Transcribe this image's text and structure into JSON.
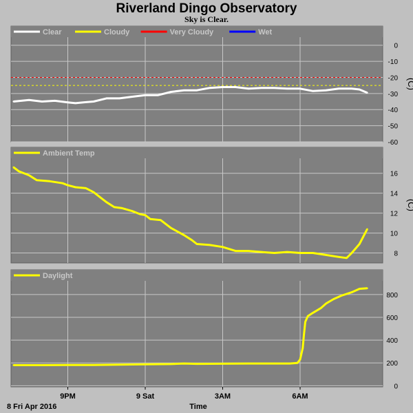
{
  "title": "Riverland Dingo Observatory",
  "subtitle": "Sky is Clear.",
  "bottom_left_label": "8 Fri Apr 2016",
  "x_axis_label": "Time",
  "x_ticks": [
    {
      "label": "9PM",
      "hour": 21
    },
    {
      "label": "9 Sat",
      "hour": 24
    },
    {
      "label": "3AM",
      "hour": 27
    },
    {
      "label": "6AM",
      "hour": 30
    }
  ],
  "x_range_hours": [
    18.8,
    33.2
  ],
  "colors": {
    "background": "#c0c0c0",
    "plot_area": "#808080",
    "grid": "#c8c8c8",
    "clear": "#ffffff",
    "cloudy": "#ffff00",
    "very_cloudy": "#ff0000",
    "wet": "#0000ff"
  },
  "chart_data": [
    {
      "type": "line",
      "name": "sky",
      "legend": [
        {
          "label": "Clear",
          "color": "#ffffff"
        },
        {
          "label": "Cloudy",
          "color": "#ffff00"
        },
        {
          "label": "Very Cloudy",
          "color": "#ff0000"
        },
        {
          "label": "Wet",
          "color": "#0000ff"
        }
      ],
      "unit": "(C)",
      "ylim": [
        -60,
        5
      ],
      "yticks": [
        0,
        -10,
        -20,
        -30,
        -40,
        -50,
        -60
      ],
      "thresholds": [
        {
          "value": -20,
          "color": "#ff0000"
        },
        {
          "value": -25,
          "color": "#ffff00"
        }
      ],
      "series": [
        {
          "name": "Clear",
          "color": "#ffffff",
          "x": [
            18.9,
            19.5,
            20.0,
            20.5,
            21.0,
            21.3,
            21.6,
            22.0,
            22.5,
            23.0,
            23.5,
            24.0,
            24.5,
            25.0,
            25.5,
            26.0,
            26.5,
            27.0,
            27.5,
            28.0,
            28.5,
            29.0,
            29.5,
            30.0,
            30.5,
            31.0,
            31.5,
            32.0,
            32.3,
            32.6
          ],
          "y": [
            -35,
            -34,
            -35,
            -34.5,
            -35.5,
            -36,
            -35.5,
            -35,
            -33,
            -33,
            -32,
            -31,
            -31,
            -29,
            -28,
            -28,
            -26.5,
            -26,
            -26,
            -27,
            -26.5,
            -26.5,
            -27,
            -27,
            -28.5,
            -28,
            -27,
            -27,
            -27.5,
            -29.5
          ]
        }
      ]
    },
    {
      "type": "line",
      "name": "ambient",
      "legend": [
        {
          "label": "Ambient Temp",
          "color": "#ffff00"
        }
      ],
      "unit": "(C)",
      "ylim": [
        7,
        17.5
      ],
      "yticks": [
        16,
        14,
        12,
        10,
        8
      ],
      "series": [
        {
          "name": "Ambient Temp",
          "color": "#ffff00",
          "x": [
            18.9,
            19.1,
            19.5,
            19.8,
            20.3,
            20.8,
            21.0,
            21.3,
            21.7,
            22.0,
            22.3,
            22.5,
            22.8,
            23.1,
            23.5,
            23.8,
            24.0,
            24.2,
            24.6,
            25.0,
            25.5,
            25.8,
            26.0,
            26.5,
            27.0,
            27.5,
            28.0,
            28.5,
            29.0,
            29.5,
            30.0,
            30.5,
            31.0,
            31.5,
            31.8,
            32.0,
            32.3,
            32.6
          ],
          "y": [
            16.6,
            16.2,
            15.8,
            15.3,
            15.2,
            15.0,
            14.8,
            14.6,
            14.5,
            14.1,
            13.5,
            13.1,
            12.6,
            12.5,
            12.2,
            11.9,
            11.8,
            11.4,
            11.3,
            10.5,
            9.8,
            9.3,
            8.9,
            8.8,
            8.6,
            8.2,
            8.2,
            8.1,
            8.0,
            8.1,
            8.0,
            8.0,
            7.8,
            7.6,
            7.5,
            8.0,
            8.9,
            10.4
          ]
        }
      ]
    },
    {
      "type": "line",
      "name": "daylight",
      "legend": [
        {
          "label": "Daylight",
          "color": "#ffff00"
        }
      ],
      "unit": "",
      "ylim": [
        -10,
        920
      ],
      "yticks": [
        800,
        600,
        400,
        200,
        0
      ],
      "series": [
        {
          "name": "Daylight",
          "color": "#ffff00",
          "x": [
            18.9,
            20.0,
            21.0,
            22.0,
            23.0,
            24.0,
            25.0,
            25.5,
            26.0,
            27.0,
            28.0,
            29.0,
            29.6,
            29.9,
            30.0,
            30.1,
            30.15,
            30.2,
            30.3,
            30.5,
            30.8,
            31.0,
            31.3,
            31.6,
            32.0,
            32.3,
            32.6
          ],
          "y": [
            180,
            180,
            182,
            182,
            185,
            188,
            190,
            195,
            192,
            193,
            195,
            195,
            195,
            200,
            230,
            330,
            450,
            560,
            610,
            640,
            680,
            720,
            760,
            790,
            820,
            850,
            855
          ]
        }
      ]
    }
  ]
}
